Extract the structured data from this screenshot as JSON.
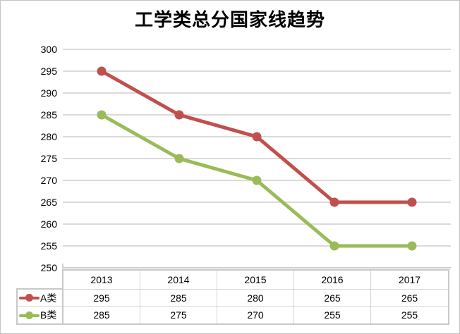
{
  "chart_data": {
    "type": "line",
    "title": "工学类总分国家线趋势",
    "categories": [
      "2013",
      "2014",
      "2015",
      "2016",
      "2017"
    ],
    "series": [
      {
        "name": "A类",
        "values": [
          295,
          285,
          280,
          265,
          265
        ],
        "color": "#C0504D"
      },
      {
        "name": "B类",
        "values": [
          285,
          275,
          270,
          255,
          255
        ],
        "color": "#9BBB59"
      }
    ],
    "ylim": [
      250,
      300
    ],
    "ytick_step": 5,
    "ytick_labels": [
      "250",
      "255",
      "260",
      "265",
      "270",
      "275",
      "280",
      "285",
      "290",
      "295",
      "300"
    ],
    "grid": true,
    "legend_position": "data-table-left",
    "colors": {
      "gridline": "#CDCDCD",
      "axis_line": "#BFBFBF",
      "table_border": "#C9C9C9",
      "frame_border": "#C4C4C4",
      "background": "#FFFFFF",
      "title_text": "#000000",
      "axis_text": "#000000"
    }
  }
}
